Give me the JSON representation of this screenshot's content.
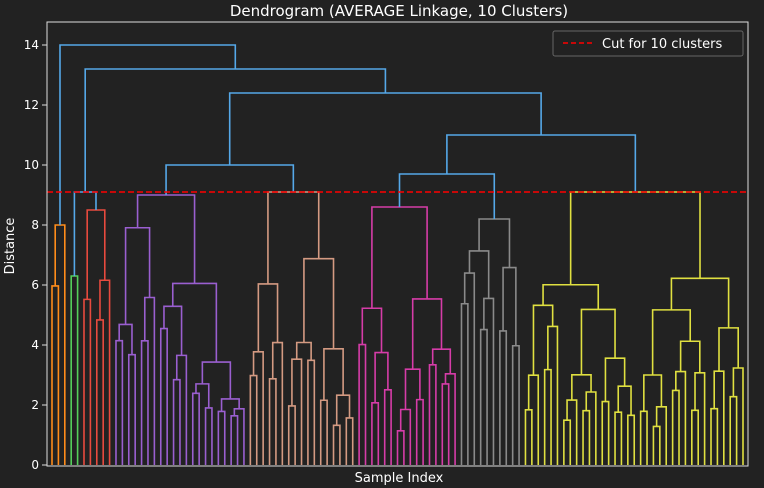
{
  "chart_data": {
    "type": "dendrogram",
    "title": "Dendrogram (AVERAGE Linkage, 10 Clusters)",
    "xlabel": "Sample Index",
    "ylabel": "Distance",
    "ylim": [
      0,
      14.6
    ],
    "yticks": [
      0,
      2,
      4,
      6,
      8,
      10,
      12,
      14
    ],
    "cut_height": 9.1,
    "legend": {
      "label": "Cut for 10 clusters",
      "position": "top-right",
      "color": "#ff0000"
    },
    "colors": {
      "background": "#222222",
      "text": "#ffffff",
      "above_cut": "#55a8e8",
      "cluster_orange": "#ff8c1a",
      "cluster_green": "#55d05a",
      "cluster_red": "#e84a3e",
      "cluster_purple": "#9a5fd0",
      "cluster_tan": "#d49a82",
      "cluster_magenta": "#d63ca8",
      "cluster_gray": "#8a8a8a",
      "cluster_yellow": "#e0e040"
    },
    "clusters": [
      {
        "color": "cluster_orange",
        "leaves": 3,
        "merge_height": 8.0
      },
      {
        "color": "cluster_green",
        "leaves": 2,
        "merge_height": 6.3
      },
      {
        "color": "cluster_red",
        "leaves": 5,
        "merge_height": 8.5
      },
      {
        "color": "cluster_purple",
        "leaves": 21,
        "merge_height": 9.0
      },
      {
        "color": "cluster_tan",
        "leaves": 17,
        "merge_height": 9.1
      },
      {
        "color": "cluster_magenta",
        "leaves": 16,
        "merge_height": 8.6
      },
      {
        "color": "cluster_gray",
        "leaves": 10,
        "merge_height": 8.2
      },
      {
        "color": "cluster_yellow",
        "leaves": 35,
        "merge_height": 9.1
      }
    ],
    "upper_merges": [
      {
        "label": "red+green",
        "height": 9.1
      },
      {
        "label": "purple+tan",
        "height": 10.0
      },
      {
        "label": "magenta+gray",
        "height": 11.0
      },
      {
        "label": "A+B",
        "height": 12.4
      },
      {
        "label": "C+D",
        "height": 13.2
      },
      {
        "label": "root",
        "height": 14.0
      }
    ]
  }
}
